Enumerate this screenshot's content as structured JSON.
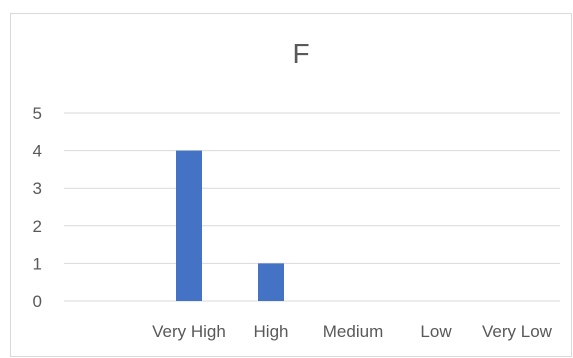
{
  "chart_data": {
    "type": "bar",
    "title": "F",
    "categories": [
      "Very High",
      "High",
      "Medium",
      "Low",
      "Very Low"
    ],
    "values": [
      4,
      1,
      0,
      0,
      0
    ],
    "xlabel": "",
    "ylabel": "",
    "ylim": [
      0,
      5
    ],
    "yticks": [
      "0",
      "1",
      "2",
      "3",
      "4",
      "5"
    ],
    "grid": true,
    "legend": "none",
    "colors": {
      "bar": "#4472c4",
      "grid": "#d9d9d9",
      "text": "#595959"
    }
  }
}
